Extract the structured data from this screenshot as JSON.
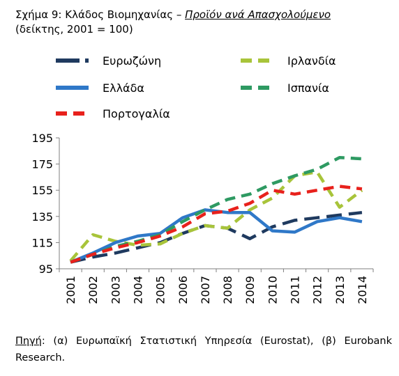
{
  "header": {
    "figure_label": "Σχήμα 9:",
    "title_plain": "Κλάδος Βιομηχανίας –",
    "title_italic": "Προϊόν ανά Απασχολούμενο",
    "subtitle": "(δείκτης, 2001 = 100)"
  },
  "source": {
    "label": "Πηγή",
    "text": ": (α) Ευρωπαϊκή Στατιστική Υπηρεσία (Eurostat), (β) Eurobank Research."
  },
  "chart_data": {
    "type": "line",
    "title": "",
    "xlabel": "",
    "ylabel": "",
    "x": [
      "2001",
      "2002",
      "2003",
      "2004",
      "2005",
      "2006",
      "2007",
      "2008",
      "2009",
      "2010",
      "2011",
      "2012",
      "2013",
      "2014"
    ],
    "ylim": [
      95,
      195
    ],
    "yticks": [
      95,
      115,
      135,
      155,
      175,
      195
    ],
    "grid": false,
    "legend_position": "top",
    "series": [
      {
        "name": "Ευρωζώνη",
        "color": "#1f3a5f",
        "dash": "long",
        "values": [
          100,
          104,
          107,
          111,
          115,
          122,
          128,
          126,
          118,
          127,
          132,
          134,
          136,
          138
        ]
      },
      {
        "name": "Ιρλανδία",
        "color": "#a8c43a",
        "dash": "dash",
        "values": [
          101,
          121,
          116,
          113,
          114,
          122,
          128,
          126,
          140,
          149,
          166,
          169,
          142,
          155
        ]
      },
      {
        "name": "Ελλάδα",
        "color": "#2f78c8",
        "dash": "solid",
        "values": [
          100,
          107,
          115,
          120,
          122,
          134,
          140,
          138,
          138,
          124,
          123,
          131,
          134,
          131
        ]
      },
      {
        "name": "Ισπανία",
        "color": "#2e9a62",
        "dash": "dash",
        "values": [
          100,
          106,
          112,
          116,
          121,
          131,
          140,
          148,
          152,
          160,
          166,
          171,
          180,
          179
        ]
      },
      {
        "name": "Πορτογαλία",
        "color": "#e8211c",
        "dash": "dash",
        "values": [
          100,
          106,
          111,
          115,
          120,
          127,
          137,
          139,
          145,
          155,
          152,
          155,
          158,
          156
        ]
      }
    ]
  }
}
